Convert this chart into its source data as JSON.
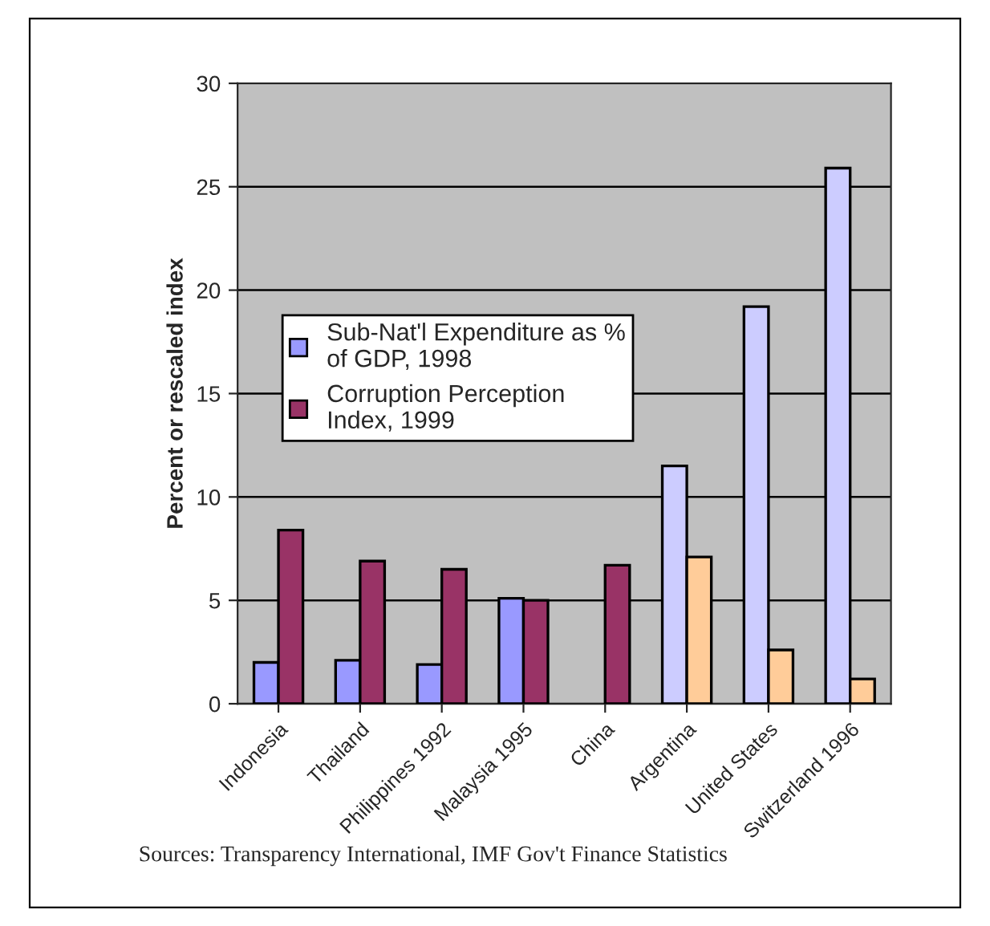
{
  "chart_data": {
    "type": "bar",
    "ylabel": "Percent or rescaled index",
    "categories": [
      "Indonesia",
      "Thailand",
      "Philippines 1992",
      "Malaysia 1995",
      "China",
      "Argentina",
      "United States",
      "Switzerland 1996"
    ],
    "series": [
      {
        "name": "Sub-Nat'l Expenditure as % of GDP, 1998",
        "color": "#9999ff",
        "colors": [
          "#9999ff",
          "#9999ff",
          "#9999ff",
          "#9999ff",
          "#9999ff",
          "#ccccff",
          "#ccccff",
          "#ccccff"
        ],
        "values": [
          2.0,
          2.1,
          1.9,
          5.1,
          null,
          11.5,
          19.2,
          25.9
        ]
      },
      {
        "name": "Corruption Perception Index, 1999",
        "color": "#993366",
        "colors": [
          "#993366",
          "#993366",
          "#993366",
          "#993366",
          "#993366",
          "#ffcc99",
          "#ffcc99",
          "#ffcc99"
        ],
        "values": [
          8.4,
          6.9,
          6.5,
          5.0,
          6.7,
          7.1,
          2.6,
          1.2
        ]
      }
    ],
    "ylim": [
      0,
      30
    ],
    "yticks": [
      0,
      5,
      10,
      15,
      20,
      25,
      30
    ],
    "grid": "y",
    "legend": "center left",
    "annotations": [
      "Sources: Transparency International, IMF Gov't Finance Statistics"
    ]
  }
}
